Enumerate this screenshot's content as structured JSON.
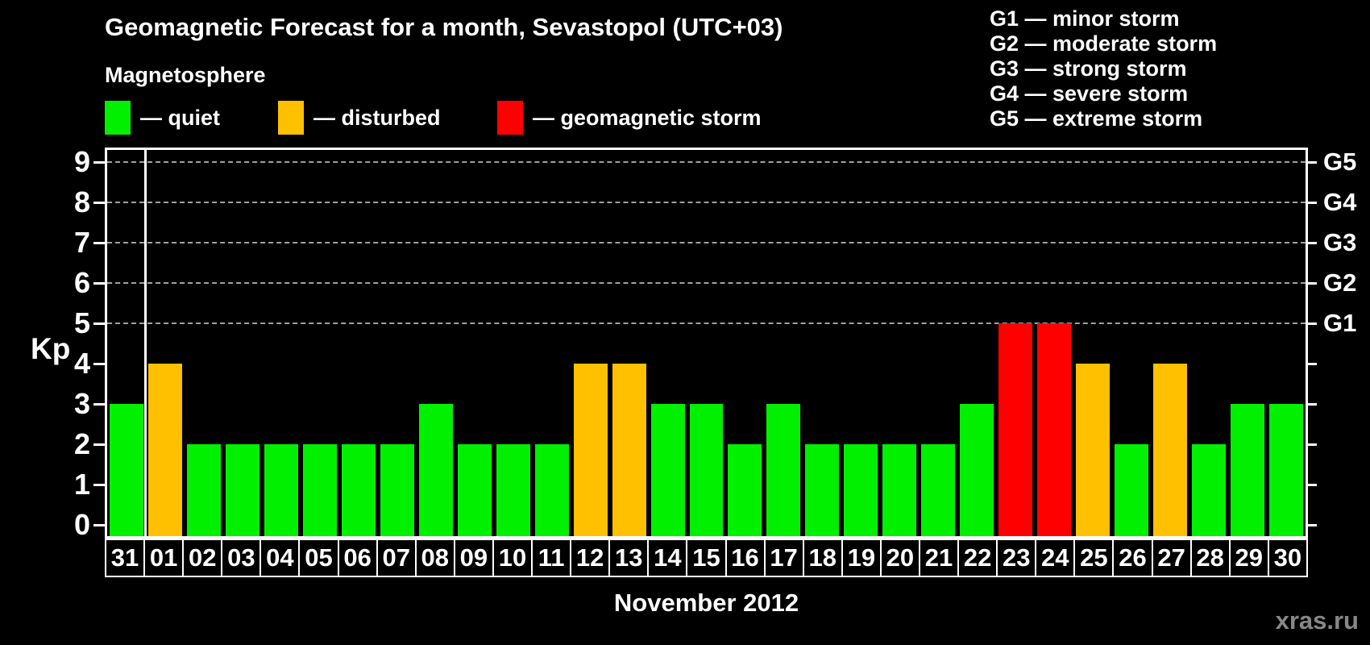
{
  "watermark": "xras.ru",
  "legend": {
    "items": [
      {
        "status": "quiet",
        "label": "— quiet",
        "color": "#00f000",
        "x": 130
      },
      {
        "status": "disturbed",
        "label": "— disturbed",
        "color": "#ffc000",
        "x": 345
      },
      {
        "status": "storm",
        "label": "— geomagnetic storm",
        "color": "#ff0000",
        "x": 617
      }
    ]
  },
  "g_legend": {
    "items": [
      "G1 — minor storm",
      "G2 — moderate storm",
      "G3 — strong storm",
      "G4 — severe storm",
      "G5 — extreme storm"
    ]
  },
  "chart_data": {
    "type": "bar",
    "title": "Geomagnetic Forecast for a month, Sevastopol (UTC+03)",
    "subtitle": "Magnetosphere",
    "xlabel": "November 2012",
    "ylabel": "Kp",
    "ylim": [
      0,
      9
    ],
    "yticks": [
      0,
      1,
      2,
      3,
      4,
      5,
      6,
      7,
      8,
      9
    ],
    "gridlines_at": [
      5,
      6,
      7,
      8,
      9
    ],
    "grid_style": "dashed horizontal, only at storm levels G1–G5",
    "legend_position": "top-left",
    "right_axis_labels": [
      {
        "value": 5,
        "text": "G1"
      },
      {
        "value": 6,
        "text": "G2"
      },
      {
        "value": 7,
        "text": "G3"
      },
      {
        "value": 8,
        "text": "G4"
      },
      {
        "value": 9,
        "text": "G5"
      }
    ],
    "categories": [
      "31",
      "01",
      "02",
      "03",
      "04",
      "05",
      "06",
      "07",
      "08",
      "09",
      "10",
      "11",
      "12",
      "13",
      "14",
      "15",
      "16",
      "17",
      "18",
      "19",
      "20",
      "21",
      "22",
      "23",
      "24",
      "25",
      "26",
      "27",
      "28",
      "29",
      "30"
    ],
    "values": [
      3,
      4,
      2,
      2,
      2,
      2,
      2,
      2,
      3,
      2,
      2,
      2,
      4,
      4,
      3,
      3,
      2,
      3,
      2,
      2,
      2,
      2,
      3,
      5,
      5,
      4,
      2,
      4,
      2,
      3,
      3
    ],
    "statuses": [
      "quiet",
      "disturbed",
      "quiet",
      "quiet",
      "quiet",
      "quiet",
      "quiet",
      "quiet",
      "quiet",
      "quiet",
      "quiet",
      "quiet",
      "disturbed",
      "disturbed",
      "quiet",
      "quiet",
      "quiet",
      "quiet",
      "quiet",
      "quiet",
      "quiet",
      "quiet",
      "quiet",
      "storm",
      "storm",
      "disturbed",
      "quiet",
      "disturbed",
      "quiet",
      "quiet",
      "quiet"
    ],
    "status_colors": {
      "quiet": "#00f000",
      "disturbed": "#ffc000",
      "storm": "#ff0000"
    },
    "separator_after_index": 0
  }
}
